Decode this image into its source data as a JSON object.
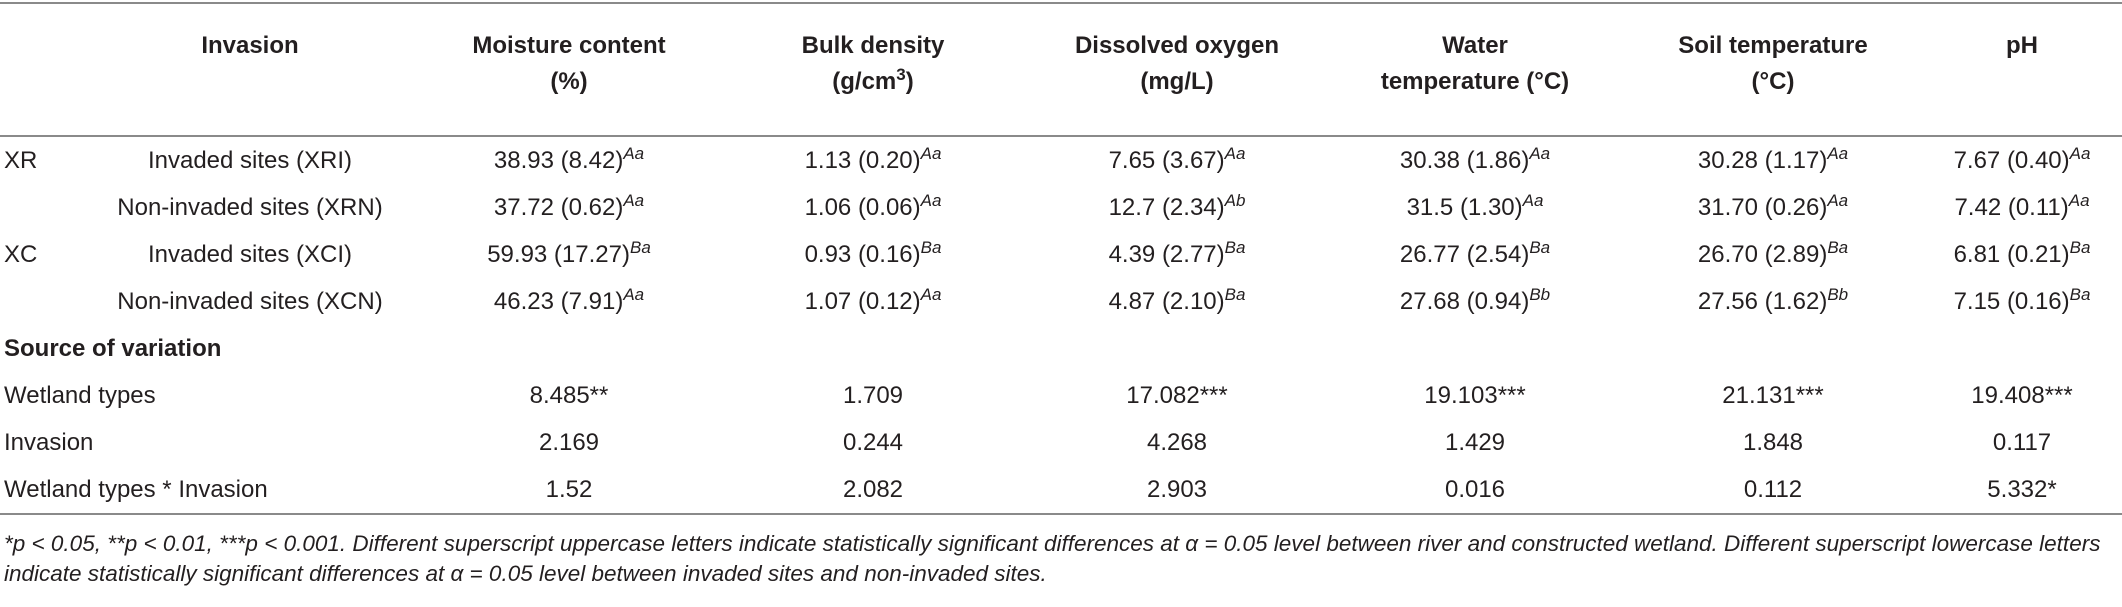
{
  "table": {
    "header": [
      {
        "lines": [
          "Invasion"
        ]
      },
      {
        "lines": [
          "Moisture content",
          "(%)"
        ]
      },
      {
        "lines": [
          "Bulk density",
          "(g/cm"
        ],
        "sup": "3",
        "tail": ")"
      },
      {
        "lines": [
          "Dissolved oxygen",
          "(mg/L)"
        ]
      },
      {
        "lines": [
          "Water",
          "temperature (°C)"
        ]
      },
      {
        "lines": [
          "Soil temperature",
          "(°C)"
        ]
      },
      {
        "lines": [
          "pH"
        ]
      }
    ],
    "groups": [
      {
        "label": "XR",
        "rows": [
          {
            "site": "Invaded sites (XRI)",
            "cells": [
              {
                "value": "38.93 (8.42)",
                "sup": "Aa"
              },
              {
                "value": "1.13 (0.20)",
                "sup": "Aa"
              },
              {
                "value": "7.65 (3.67)",
                "sup": "Aa"
              },
              {
                "value": "30.38 (1.86)",
                "sup": "Aa"
              },
              {
                "value": "30.28 (1.17)",
                "sup": "Aa"
              },
              {
                "value": "7.67 (0.40)",
                "sup": "Aa"
              }
            ]
          },
          {
            "site": "Non-invaded sites (XRN)",
            "cells": [
              {
                "value": "37.72 (0.62)",
                "sup": "Aa"
              },
              {
                "value": "1.06 (0.06)",
                "sup": "Aa"
              },
              {
                "value": "12.7 (2.34)",
                "sup": "Ab"
              },
              {
                "value": "31.5 (1.30)",
                "sup": "Aa"
              },
              {
                "value": "31.70 (0.26)",
                "sup": "Aa"
              },
              {
                "value": "7.42 (0.11)",
                "sup": "Aa"
              }
            ]
          }
        ]
      },
      {
        "label": "XC",
        "rows": [
          {
            "site": "Invaded sites (XCI)",
            "cells": [
              {
                "value": "59.93 (17.27)",
                "sup": "Ba"
              },
              {
                "value": "0.93 (0.16)",
                "sup": "Ba"
              },
              {
                "value": "4.39 (2.77)",
                "sup": "Ba"
              },
              {
                "value": "26.77 (2.54)",
                "sup": "Ba"
              },
              {
                "value": "26.70 (2.89)",
                "sup": "Ba"
              },
              {
                "value": "6.81 (0.21)",
                "sup": "Ba"
              }
            ]
          },
          {
            "site": "Non-invaded sites (XCN)",
            "cells": [
              {
                "value": "46.23 (7.91)",
                "sup": "Aa"
              },
              {
                "value": "1.07 (0.12)",
                "sup": "Aa"
              },
              {
                "value": "4.87 (2.10)",
                "sup": "Ba"
              },
              {
                "value": "27.68 (0.94)",
                "sup": "Bb"
              },
              {
                "value": "27.56 (1.62)",
                "sup": "Bb"
              },
              {
                "value": "7.15 (0.16)",
                "sup": "Ba"
              }
            ]
          }
        ]
      }
    ],
    "section_title": "Source of variation",
    "anova": [
      {
        "label": "Wetland types",
        "values": [
          "8.485**",
          "1.709",
          "17.082***",
          "19.103***",
          "21.131***",
          "19.408***"
        ]
      },
      {
        "label": "Invasion",
        "values": [
          "2.169",
          "0.244",
          "4.268",
          "1.429",
          "1.848",
          "0.117"
        ]
      },
      {
        "label": "Wetland types * Invasion",
        "values": [
          "1.52",
          "2.082",
          "2.903",
          "0.016",
          "0.112",
          "5.332*"
        ]
      }
    ]
  },
  "footnote": "*p < 0.05, **p < 0.01, ***p < 0.001. Different superscript uppercase letters indicate statistically significant differences at α = 0.05 level between river and constructed wetland. Different superscript lowercase letters indicate statistically significant differences at α = 0.05 level between invaded sites and non-invaded sites."
}
